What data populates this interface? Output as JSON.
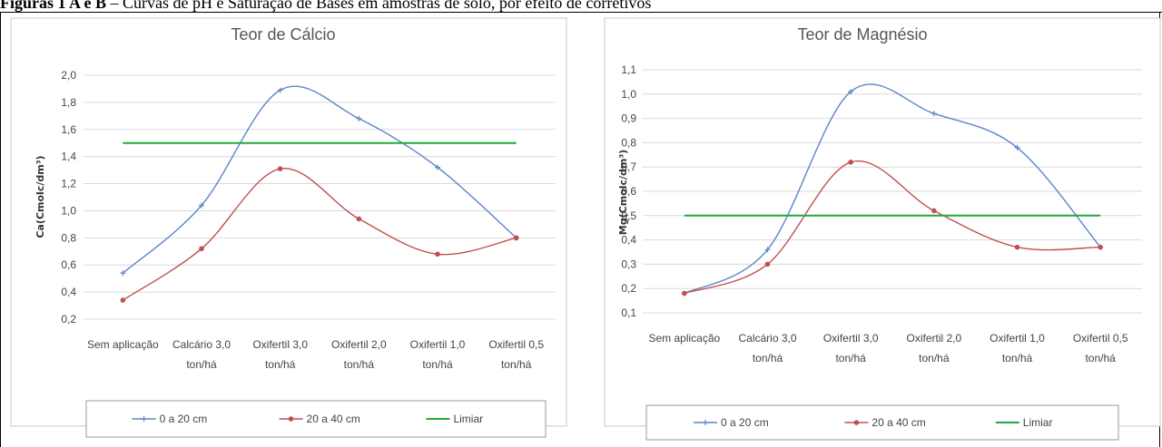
{
  "caption": {
    "bold": "Figuras 1 A e B",
    "text": " – Curvas de pH e Saturação de Bases em amostras de solo, por efeito de corretivos"
  },
  "colors": {
    "series1": "#5b86c9",
    "series2": "#c0504d",
    "threshold": "#22a839",
    "grid": "#d9d9d9"
  },
  "chart_data": [
    {
      "type": "line",
      "title": "Teor de Cálcio",
      "ylabel": "Ca(Cmolc/dm³)",
      "xlabel": "",
      "categories": [
        [
          "Sem aplicação"
        ],
        [
          "Calcário 3,0",
          "ton/há"
        ],
        [
          "Oxifertil 3,0",
          "ton/há"
        ],
        [
          "Oxifertil 2,0",
          "ton/há"
        ],
        [
          "Oxifertil 1,0",
          "ton/há"
        ],
        [
          "Oxifertil 0,5",
          "ton/há"
        ]
      ],
      "ylim": [
        0.2,
        2.0
      ],
      "ytick_step": 0.2,
      "yticks": [
        "0,2",
        "0,4",
        "0,6",
        "0,8",
        "1,0",
        "1,2",
        "1,4",
        "1,6",
        "1,8",
        "2,0"
      ],
      "grid": true,
      "legend_position": "bottom",
      "series": [
        {
          "name": "0 a 20 cm",
          "values": [
            0.54,
            1.04,
            1.89,
            1.68,
            1.32,
            0.8
          ]
        },
        {
          "name": "20 a 40 cm",
          "values": [
            0.34,
            0.72,
            1.31,
            0.94,
            0.68,
            0.8
          ]
        },
        {
          "name": "Limiar",
          "values": [
            1.5,
            1.5,
            1.5,
            1.5,
            1.5,
            1.5
          ]
        }
      ]
    },
    {
      "type": "line",
      "title": "Teor de Magnésio",
      "ylabel": "Mg(Cmolc/dm³)",
      "xlabel": "",
      "categories": [
        [
          "Sem aplicação"
        ],
        [
          "Calcário 3,0",
          "ton/há"
        ],
        [
          "Oxifertil 3,0",
          "ton/há"
        ],
        [
          "Oxifertil 2,0",
          "ton/há"
        ],
        [
          "Oxifertil 1,0",
          "ton/há"
        ],
        [
          "Oxifertil 0,5",
          "ton/há"
        ]
      ],
      "ylim": [
        0.1,
        1.1
      ],
      "ytick_step": 0.1,
      "yticks": [
        "0,1",
        "0,2",
        "0,3",
        "0,4",
        "0,5",
        "0,6",
        "0,7",
        "0,8",
        "0,9",
        "1,0",
        "1,1"
      ],
      "grid": true,
      "legend_position": "bottom",
      "series": [
        {
          "name": "0 a 20 cm",
          "values": [
            0.18,
            0.36,
            1.01,
            0.92,
            0.78,
            0.37
          ]
        },
        {
          "name": "20 a 40 cm",
          "values": [
            0.18,
            0.3,
            0.72,
            0.52,
            0.37,
            0.37
          ]
        },
        {
          "name": "Limiar",
          "values": [
            0.5,
            0.5,
            0.5,
            0.5,
            0.5,
            0.5
          ]
        }
      ]
    }
  ]
}
